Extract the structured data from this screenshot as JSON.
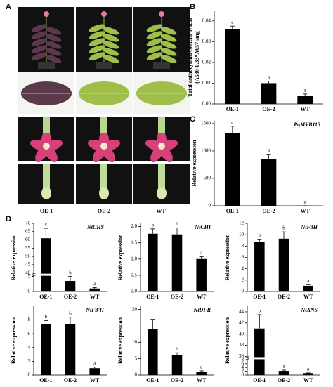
{
  "panel_a": {
    "label": "A",
    "columns": [
      "OE-1",
      "OE-2",
      "WT"
    ]
  },
  "panel_d_label": "D",
  "chart_data": [
    {
      "type": "bar",
      "panel": "B",
      "ylabel": [
        "Total anthocyanin content of leaf",
        "(A530-0.33*A657)/mg"
      ],
      "categories": [
        "OE-1",
        "OE-2",
        "WT"
      ],
      "values": [
        0.036,
        0.01,
        0.004
      ],
      "errors": [
        0.0015,
        0.001,
        0.0008
      ],
      "letters": [
        "c",
        "b",
        "a"
      ],
      "color": "#000000",
      "ylim": [
        0,
        0.045
      ],
      "yticks": [
        {
          "value": 0,
          "label": "0.00"
        },
        {
          "value": 0.01,
          "label": "0.01"
        },
        {
          "value": 0.02,
          "label": "0.02"
        },
        {
          "value": 0.03,
          "label": "0.03"
        },
        {
          "value": 0.04,
          "label": "0.04"
        }
      ]
    },
    {
      "type": "bar",
      "panel": "C",
      "title": "PqMYB113",
      "ylabel": [
        "Relative expression"
      ],
      "categories": [
        "OE-1",
        "OE-2",
        "WT"
      ],
      "values": [
        1330,
        850,
        2
      ],
      "errors": [
        120,
        90,
        0
      ],
      "letters": [
        "c",
        "b",
        "a"
      ],
      "color": "#000000",
      "ylim": [
        0,
        1550
      ],
      "yticks": [
        0,
        500,
        1000,
        1500
      ]
    },
    {
      "type": "bar",
      "title": "NtCHS",
      "ylabel": [
        "Relative expression"
      ],
      "categories": [
        "OE-1",
        "OE-2",
        "WT"
      ],
      "values": [
        61,
        3.5,
        1
      ],
      "errors": [
        6,
        1.5,
        0.3
      ],
      "letters": [
        "c",
        "b",
        "a"
      ],
      "color": "#000000",
      "ylim": [
        0,
        70
      ],
      "ybreak": [
        5,
        40
      ],
      "yticks": [
        0,
        5,
        40,
        45,
        50,
        55,
        60,
        65,
        70
      ]
    },
    {
      "type": "bar",
      "title": "NtCHI",
      "ylabel": [
        "Relative expression"
      ],
      "categories": [
        "OE-1",
        "OE-2",
        "WT"
      ],
      "values": [
        1.78,
        1.76,
        1.0
      ],
      "errors": [
        0.15,
        0.2,
        0.07
      ],
      "letters": [
        "b",
        "b",
        "a"
      ],
      "color": "#000000",
      "ylim": [
        0,
        2.1
      ],
      "yticks": [
        {
          "value": 0,
          "label": "0.0"
        },
        {
          "value": 0.5,
          "label": "0.5"
        },
        {
          "value": 1,
          "label": "1.0"
        },
        {
          "value": 1.5,
          "label": "1.5"
        },
        {
          "value": 2,
          "label": "2.0"
        }
      ]
    },
    {
      "type": "bar",
      "title": "NtF3H",
      "ylabel": [
        "Relative expression"
      ],
      "categories": [
        "OE-1",
        "OE-2",
        "WT"
      ],
      "values": [
        8.7,
        9.3,
        1.0
      ],
      "errors": [
        0.5,
        1.2,
        0.2
      ],
      "letters": [
        "b",
        "b",
        "a"
      ],
      "color": "#000000",
      "ylim": [
        0,
        12
      ],
      "yticks": [
        0,
        2,
        4,
        6,
        8,
        10,
        12
      ]
    },
    {
      "type": "bar",
      "title": "NtF3'H",
      "ylabel": [
        "Relative expression"
      ],
      "categories": [
        "OE-1",
        "OE-2",
        "WT"
      ],
      "values": [
        7.4,
        7.4,
        1.0
      ],
      "errors": [
        0.5,
        1.0,
        0.15
      ],
      "letters": [
        "b",
        "b",
        "a"
      ],
      "color": "#000000",
      "ylim": [
        0,
        10
      ],
      "yticks": [
        0,
        2,
        4,
        6,
        8
      ]
    },
    {
      "type": "bar",
      "title": "NtDFR",
      "ylabel": [
        "Relative expression"
      ],
      "categories": [
        "OE-1",
        "OE-2",
        "WT"
      ],
      "values": [
        14,
        6,
        1
      ],
      "errors": [
        3,
        0.8,
        0.3
      ],
      "letters": [
        "c",
        "b",
        "a"
      ],
      "color": "#000000",
      "ylim": [
        0,
        21
      ],
      "yticks": [
        0,
        5,
        10,
        20
      ]
    },
    {
      "type": "bar",
      "title": "NtANS",
      "ylabel": [
        "Relative expression"
      ],
      "categories": [
        "OE-1",
        "OE-2",
        "WT"
      ],
      "values": [
        41,
        2.2,
        1.0
      ],
      "errors": [
        2.5,
        0.4,
        0.15
      ],
      "letters": [
        "b",
        "a",
        "a"
      ],
      "color": "#000000",
      "ylim": [
        0,
        45
      ],
      "ybreak": [
        8,
        36
      ],
      "yticks": [
        0,
        2,
        4,
        6,
        8,
        36,
        38,
        40,
        42,
        44
      ]
    }
  ]
}
